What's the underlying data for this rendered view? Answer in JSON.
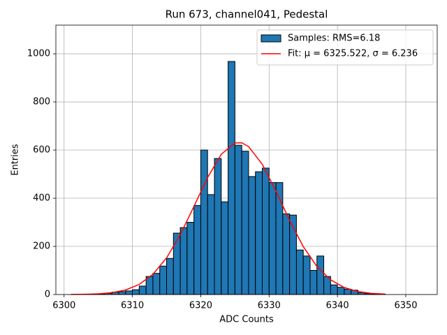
{
  "chart_data": {
    "type": "histogram",
    "title": "Run 673, channel041, Pedestal",
    "x_label": "ADC Counts",
    "y_label": "Entries",
    "bins": [
      6301,
      6302,
      6303,
      6304,
      6305,
      6306,
      6307,
      6308,
      6309,
      6310,
      6311,
      6312,
      6313,
      6314,
      6315,
      6316,
      6317,
      6318,
      6319,
      6320,
      6321,
      6322,
      6323,
      6324,
      6325,
      6326,
      6327,
      6328,
      6329,
      6330,
      6331,
      6332,
      6333,
      6334,
      6335,
      6336,
      6337,
      6338,
      6339,
      6340,
      6341,
      6342,
      6343,
      6344,
      6345,
      6346,
      6347,
      6348,
      6349,
      6350,
      6351,
      6352
    ],
    "series": [
      {
        "name": "Samples: RMS=6.18",
        "type": "histogram",
        "color": "#1f77b4",
        "edgecolor": "#000000",
        "values": [
          0,
          0,
          1,
          2,
          3,
          5,
          10,
          12,
          15,
          20,
          35,
          75,
          88,
          118,
          150,
          255,
          278,
          300,
          370,
          600,
          415,
          565,
          385,
          968,
          620,
          595,
          490,
          510,
          525,
          465,
          465,
          335,
          330,
          185,
          160,
          100,
          160,
          75,
          40,
          30,
          22,
          18,
          8,
          4,
          2,
          1,
          0,
          0,
          0,
          0,
          0
        ]
      },
      {
        "name": "Fit: μ = 6325.522, σ = 6.236",
        "type": "line",
        "color": "#ff0000",
        "x": [
          6301,
          6303,
          6305,
          6307,
          6309,
          6311,
          6313,
          6315,
          6317,
          6319,
          6321,
          6323,
          6325,
          6326,
          6327,
          6329,
          6331,
          6333,
          6335,
          6337,
          6339,
          6341,
          6343,
          6345,
          6347
        ],
        "values": [
          0.28,
          0.93,
          2.8,
          7.7,
          18.9,
          42.0,
          84.2,
          152.2,
          248.4,
          365.7,
          485.9,
          582.4,
          629.8,
          630.1,
          614.5,
          541.0,
          429.7,
          307.9,
          199.1,
          116.2,
          61.1,
          29.0,
          12.4,
          4.8,
          1.7
        ]
      }
    ],
    "xlim": [
      6298.8,
      6354.6
    ],
    "ylim": [
      0,
      1119
    ],
    "xticks": [
      6300,
      6310,
      6320,
      6330,
      6340,
      6350
    ],
    "yticks": [
      0,
      200,
      400,
      600,
      800,
      1000
    ],
    "grid": true,
    "legend": "upper right"
  }
}
